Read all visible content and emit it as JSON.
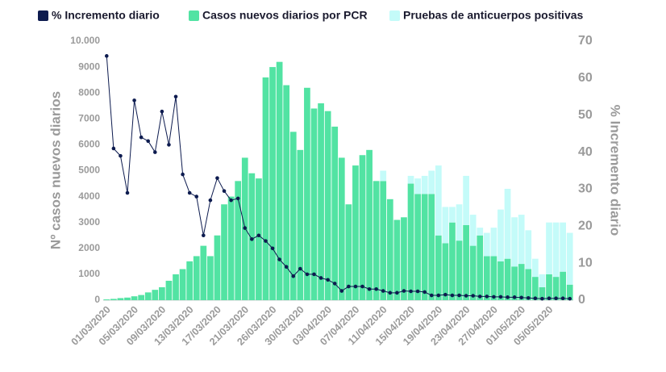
{
  "chart_data": {
    "type": "bar",
    "y_label": "Nº casos nuevos diarios",
    "y2_label": "% Incremento diario",
    "categories": [
      "01/03/2020",
      null,
      null,
      null,
      "05/03/2020",
      null,
      null,
      null,
      "09/03/2020",
      null,
      null,
      null,
      "13/03/2020",
      null,
      null,
      null,
      "17/03/2020",
      null,
      null,
      null,
      "21/03/2020",
      null,
      null,
      null,
      "26/03/2020",
      null,
      null,
      null,
      "30/03/2020",
      null,
      null,
      null,
      "03/04/2020",
      null,
      null,
      null,
      "07/04/2020",
      null,
      null,
      null,
      "11/04/2020",
      null,
      null,
      null,
      "15/04/2020",
      null,
      null,
      null,
      "19/04/2020",
      null,
      null,
      null,
      "23/04/2020",
      null,
      null,
      null,
      "27/04/2020",
      null,
      null,
      null,
      "01/05/2020",
      null,
      null,
      null,
      "05/05/2020",
      null,
      null,
      null
    ],
    "series": [
      {
        "name": "% Incremento diario",
        "type": "line",
        "axis": "y2",
        "color": "#0d1b4f",
        "values": [
          66,
          41,
          39,
          29,
          54,
          44,
          43,
          40,
          51,
          42,
          55,
          34,
          29,
          28,
          17.5,
          27,
          33,
          29.5,
          27,
          27.5,
          19.5,
          16.5,
          17.5,
          16,
          14,
          11,
          9,
          6.5,
          8.5,
          7,
          7,
          6,
          5.5,
          4.5,
          2.5,
          3.7,
          3.7,
          3.7,
          3,
          3,
          2.5,
          2,
          2,
          2.5,
          2.4,
          2.4,
          2.2,
          1.3,
          1.3,
          1.5,
          1.3,
          1.3,
          1.2,
          1.2,
          1,
          1,
          0.9,
          0.9,
          0.8,
          0.8,
          0.7,
          0.6,
          0.5,
          0.4,
          0.5,
          0.5,
          0.5,
          0.4
        ]
      },
      {
        "name": "Casos nuevos diarios por PCR",
        "type": "bar",
        "color": "#52e3a3",
        "values": [
          30,
          50,
          80,
          100,
          150,
          200,
          300,
          400,
          500,
          750,
          1000,
          1200,
          1500,
          1700,
          2100,
          1700,
          2500,
          3700,
          4000,
          4600,
          5500,
          4900,
          4700,
          8600,
          9000,
          9200,
          8300,
          6500,
          5800,
          8200,
          7400,
          7600,
          7300,
          6700,
          5500,
          3700,
          5200,
          5600,
          5800,
          4600,
          4600,
          3900,
          3100,
          3200,
          4500,
          4100,
          4100,
          4100,
          2500,
          2200,
          3000,
          2300,
          2900,
          2100,
          2500,
          1700,
          1700,
          1500,
          1600,
          1300,
          1400,
          1200,
          900,
          500,
          1000,
          900,
          1100,
          600
        ]
      },
      {
        "name": "Pruebas de anticuerpos positivas",
        "type": "bar",
        "color": "#c4fbf9",
        "values": [
          null,
          null,
          null,
          null,
          null,
          null,
          null,
          null,
          null,
          null,
          null,
          null,
          null,
          null,
          null,
          null,
          null,
          null,
          null,
          null,
          null,
          null,
          null,
          null,
          null,
          null,
          null,
          null,
          null,
          null,
          null,
          null,
          null,
          null,
          null,
          null,
          null,
          null,
          null,
          null,
          400,
          0,
          0,
          0,
          300,
          600,
          700,
          900,
          2700,
          1400,
          600,
          1400,
          1900,
          1200,
          300,
          900,
          1100,
          2000,
          2700,
          1900,
          1900,
          1500,
          700,
          500,
          2000,
          2100,
          1900,
          2000
        ]
      }
    ],
    "ylim": [
      0,
      10000
    ],
    "yticks": [
      0,
      1000,
      2000,
      3000,
      4000,
      5000,
      6000,
      7000,
      8000,
      9000,
      {
        "value": 10000,
        "label": "10.000"
      }
    ],
    "y2lim": [
      0,
      70
    ],
    "y2ticks": [
      0,
      10,
      20,
      30,
      40,
      50,
      60,
      70
    ]
  }
}
